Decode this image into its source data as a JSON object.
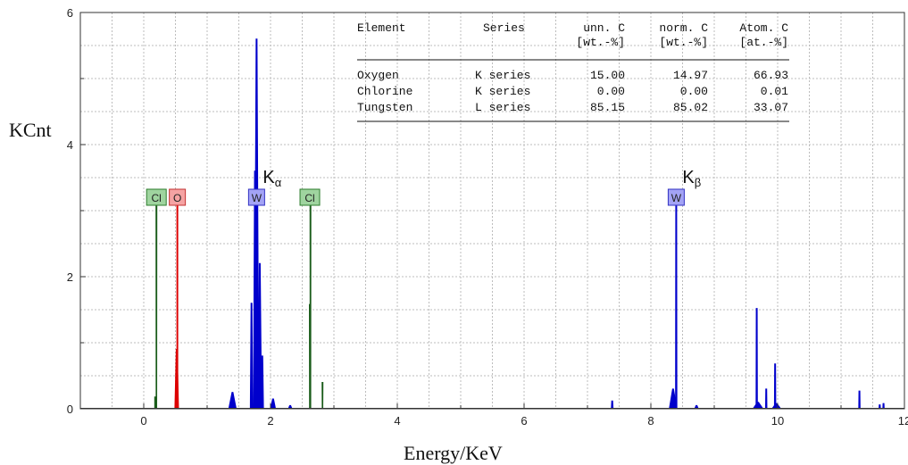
{
  "chart_data": {
    "type": "spectrum",
    "ylabel": "KCnt",
    "xlabel": "Energy/KeV",
    "xlim": [
      -1,
      12
    ],
    "ylim": [
      0,
      6
    ],
    "x_ticks": [
      0,
      2,
      4,
      6,
      8,
      10,
      12
    ],
    "y_ticks": [
      0,
      2,
      4,
      6
    ],
    "grid": true,
    "series": [
      {
        "name": "W",
        "color": "#0000cc",
        "peaks": [
          {
            "x": 1.4,
            "y": 0.25,
            "w": 0.06
          },
          {
            "x": 1.7,
            "y": 1.6,
            "w": 0.02
          },
          {
            "x": 1.755,
            "y": 3.6,
            "w": 0.025
          },
          {
            "x": 1.78,
            "y": 5.6,
            "w": 0.035
          },
          {
            "x": 1.83,
            "y": 2.2,
            "w": 0.03
          },
          {
            "x": 1.87,
            "y": 0.8,
            "w": 0.02
          },
          {
            "x": 2.04,
            "y": 0.15,
            "w": 0.04
          },
          {
            "x": 2.31,
            "y": 0.05,
            "w": 0.03
          },
          {
            "x": 7.39,
            "y": 0.12,
            "w": 0.015
          },
          {
            "x": 8.35,
            "y": 0.3,
            "w": 0.06
          },
          {
            "x": 8.4,
            "y": 3.15,
            "w": 0.012
          },
          {
            "x": 8.72,
            "y": 0.05,
            "w": 0.03
          },
          {
            "x": 9.67,
            "y": 1.52,
            "w": 0.012
          },
          {
            "x": 9.69,
            "y": 0.1,
            "w": 0.08
          },
          {
            "x": 9.82,
            "y": 0.3,
            "w": 0.012
          },
          {
            "x": 9.96,
            "y": 0.68,
            "w": 0.012
          },
          {
            "x": 9.98,
            "y": 0.08,
            "w": 0.07
          },
          {
            "x": 11.29,
            "y": 0.27,
            "w": 0.012
          },
          {
            "x": 11.61,
            "y": 0.06,
            "w": 0.012
          },
          {
            "x": 11.67,
            "y": 0.08,
            "w": 0.012
          }
        ]
      },
      {
        "name": "O",
        "color": "#dd0000",
        "peaks": [
          {
            "x": 0.52,
            "y": 0.9,
            "w": 0.03
          },
          {
            "x": 0.53,
            "y": 3.15,
            "w": 0.008
          }
        ]
      },
      {
        "name": "Cl",
        "color": "#1a5c1a",
        "peaks": [
          {
            "x": 0.18,
            "y": 0.18,
            "w": 0.008
          },
          {
            "x": 0.2,
            "y": 3.15,
            "w": 0.006
          },
          {
            "x": 2.62,
            "y": 1.58,
            "w": 0.006
          },
          {
            "x": 2.63,
            "y": 3.15,
            "w": 0.006
          },
          {
            "x": 2.82,
            "y": 0.4,
            "w": 0.006
          }
        ]
      }
    ],
    "markers": [
      {
        "label": "Cl",
        "x": 0.2,
        "fill": "#9fd49f",
        "stroke": "#2e7d2e"
      },
      {
        "label": "O",
        "x": 0.53,
        "fill": "#f5a3a3",
        "stroke": "#c33333"
      },
      {
        "label": "W",
        "x": 1.78,
        "fill": "#a3a3f5",
        "stroke": "#3333c3"
      },
      {
        "label": "Cl",
        "x": 2.62,
        "fill": "#9fd49f",
        "stroke": "#2e7d2e"
      },
      {
        "label": "W",
        "x": 8.4,
        "fill": "#a3a3f5",
        "stroke": "#3333c3"
      }
    ],
    "line_labels": [
      {
        "label": "K",
        "subscript": "α",
        "x": 1.78
      },
      {
        "label": "K",
        "subscript": "β",
        "x": 8.4
      }
    ],
    "table": {
      "headers": [
        "Element",
        "Series",
        "unn. C",
        "norm. C",
        "Atom. C"
      ],
      "units": [
        "",
        "",
        "[wt.-%]",
        "[wt.-%]",
        "[at.-%]"
      ],
      "rows": [
        [
          "Oxygen",
          "K series",
          "15.00",
          "14.97",
          "66.93"
        ],
        [
          "Chlorine",
          "K series",
          "0.00",
          "0.00",
          "0.01"
        ],
        [
          "Tungsten",
          "L series",
          "85.15",
          "85.02",
          "33.07"
        ]
      ]
    }
  }
}
